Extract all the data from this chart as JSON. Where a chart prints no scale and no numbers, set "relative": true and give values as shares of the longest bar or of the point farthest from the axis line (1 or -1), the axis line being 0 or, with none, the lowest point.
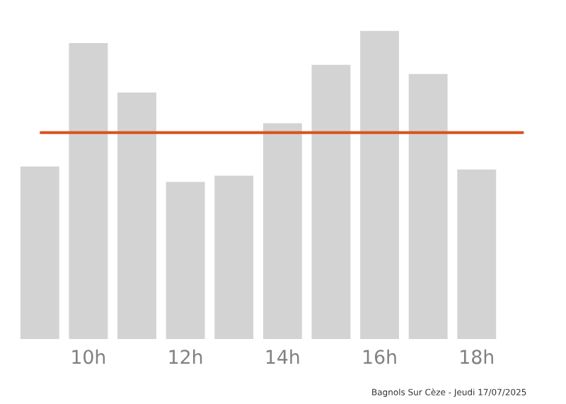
{
  "chart_data": {
    "type": "bar",
    "relative": true,
    "categories": [
      null,
      "10h",
      null,
      "12h",
      null,
      "14h",
      null,
      "16h",
      null,
      "18h"
    ],
    "values": [
      0.56,
      0.96,
      0.8,
      0.51,
      0.53,
      0.7,
      0.89,
      1,
      0.86,
      0.55
    ],
    "color": "#d3d3d3",
    "ref_lines": [
      {
        "axis": "y",
        "value": 0.67,
        "color": "#d9531e"
      }
    ],
    "annotations": [
      "Bagnols Sur Cèze - Jeudi 17/07/2025"
    ]
  }
}
